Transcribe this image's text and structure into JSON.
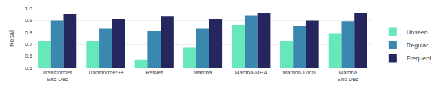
{
  "chart_data": {
    "type": "bar",
    "categories": [
      "Transformer\nEnc-Dec",
      "Transformer++",
      "RetNet",
      "Mamba",
      "Mamba-MHA",
      "Mamba-Local",
      "Mamba\nEnc-Dec"
    ],
    "series": [
      {
        "name": "Unseen",
        "color": "#66e8b8",
        "values": [
          0.73,
          0.73,
          0.57,
          0.67,
          0.86,
          0.73,
          0.79
        ]
      },
      {
        "name": "Regular",
        "color": "#3a87b0",
        "values": [
          0.9,
          0.83,
          0.81,
          0.83,
          0.94,
          0.85,
          0.89
        ]
      },
      {
        "name": "Frequent",
        "color": "#25265e",
        "values": [
          0.95,
          0.91,
          0.93,
          0.91,
          0.96,
          0.9,
          0.96
        ]
      }
    ],
    "ylabel": "Recall",
    "ylim": [
      0.5,
      1.0
    ],
    "yticks": [
      0.5,
      0.6,
      0.7,
      0.8,
      0.9,
      {
        "value": 1.0,
        "label": "1.0"
      }
    ],
    "grid": true,
    "legend": "lower right"
  }
}
